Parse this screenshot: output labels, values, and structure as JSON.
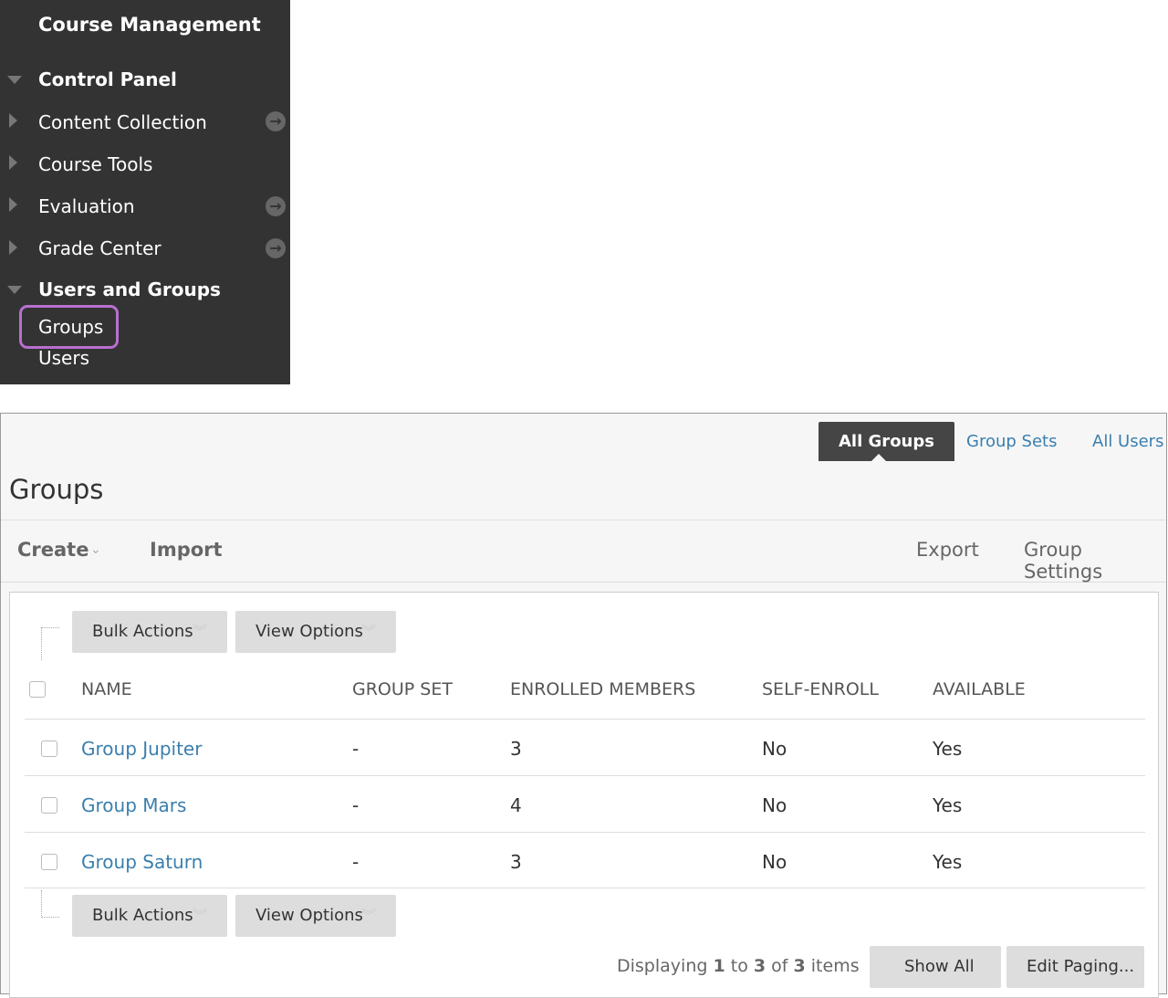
{
  "sidebar": {
    "title": "Course Management",
    "control_panel": "Control Panel",
    "items": [
      {
        "label": "Content Collection"
      },
      {
        "label": "Course Tools"
      },
      {
        "label": "Evaluation"
      },
      {
        "label": "Grade Center"
      }
    ],
    "users_and_groups": "Users and Groups",
    "groups": "Groups",
    "users": "Users",
    "highlight_color": "#b86fd0"
  },
  "tabs": {
    "all_groups": "All Groups",
    "group_sets": "Group Sets",
    "all_users": "All Users"
  },
  "page_title": "Groups",
  "actions": {
    "create": "Create",
    "import": "Import",
    "export": "Export",
    "settings": "Group Settings"
  },
  "toolbar": {
    "bulk": "Bulk Actions",
    "view": "View Options"
  },
  "columns": [
    "NAME",
    "GROUP SET",
    "ENROLLED MEMBERS",
    "SELF-ENROLL",
    "AVAILABLE"
  ],
  "rows": [
    [
      "Group Jupiter",
      "-",
      "3",
      "No",
      "Yes"
    ],
    [
      "Group Mars",
      "-",
      "4",
      "No",
      "Yes"
    ],
    [
      "Group Saturn",
      "-",
      "3",
      "No",
      "Yes"
    ]
  ],
  "paging": {
    "pre": "Displaying ",
    "from": "1",
    "to_word": " to ",
    "to": "3",
    "of_word": " of ",
    "total": "3",
    "items": " items",
    "show_all": "Show All",
    "edit": "Edit Paging..."
  }
}
